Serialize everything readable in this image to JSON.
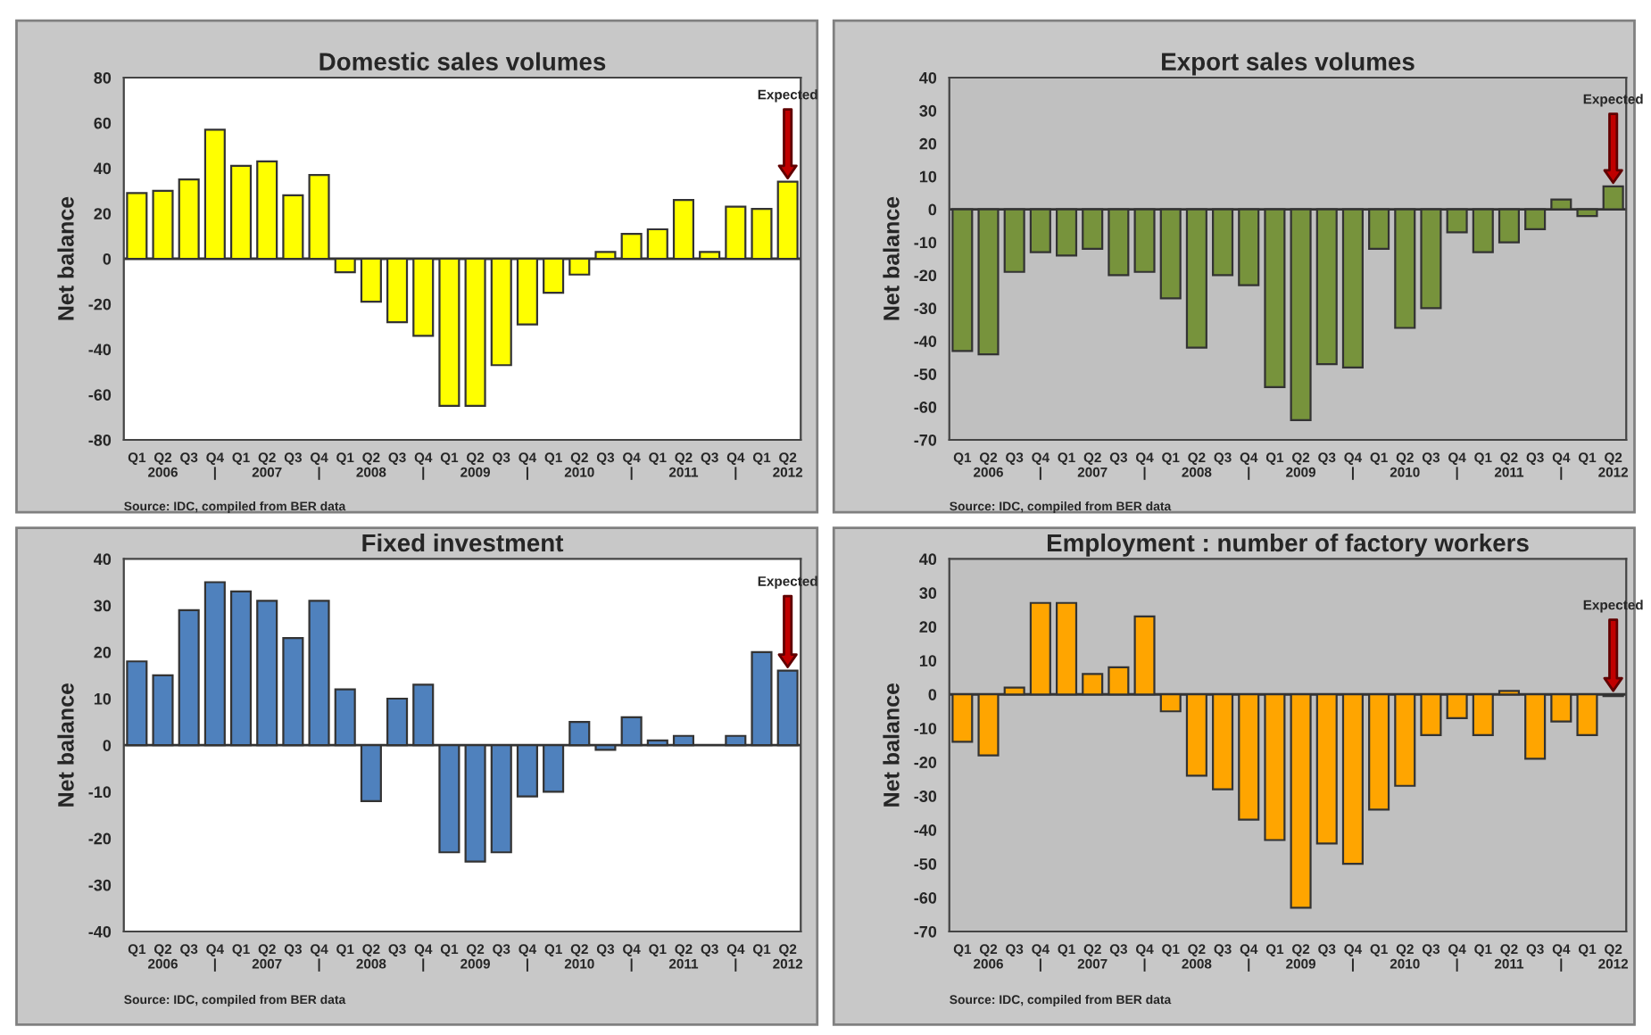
{
  "chart_data": [
    {
      "type": "bar",
      "title": "Domestic sales volumes",
      "ylabel": "Net balance",
      "categories": [
        "Q1",
        "Q2\n2006",
        "Q3",
        "Q4\n|",
        "Q1",
        "Q2\n2007",
        "Q3",
        "Q4\n|",
        "Q1",
        "Q2\n2008",
        "Q3",
        "Q4\n|",
        "Q1",
        "Q2\n2009",
        "Q3",
        "Q4\n|",
        "Q1",
        "Q2\n2010",
        "Q3",
        "Q4\n|",
        "Q1",
        "Q2\n2011",
        "Q3",
        "Q4\n|",
        "Q1",
        "Q2\n2012"
      ],
      "values": [
        29,
        30,
        35,
        57,
        41,
        43,
        28,
        37,
        -6,
        -19,
        -28,
        -34,
        -65,
        -65,
        -47,
        -29,
        -15,
        -7,
        3,
        11,
        13,
        26,
        3,
        23,
        22,
        34
      ],
      "color": "#ffff00",
      "ylim": [
        -80,
        80
      ],
      "yticks": [
        -80,
        -60,
        -40,
        -20,
        0,
        20,
        40,
        60,
        80
      ],
      "grid": false,
      "ref_lines": [
        {
          "axis": "y",
          "value": 0,
          "color": "#333333"
        }
      ],
      "annotations": [
        "Expected",
        "Source: IDC, compiled from BER data"
      ]
    },
    {
      "type": "bar",
      "title": "Export sales volumes",
      "ylabel": "Net balance",
      "categories": [
        "Q1",
        "Q2\n2006",
        "Q3",
        "Q4\n|",
        "Q1",
        "Q2\n2007",
        "Q3",
        "Q4\n|",
        "Q1",
        "Q2\n2008",
        "Q3",
        "Q4\n|",
        "Q1",
        "Q2\n2009",
        "Q3",
        "Q4\n|",
        "Q1",
        "Q2\n2010",
        "Q3",
        "Q4\n|",
        "Q1",
        "Q2\n2011",
        "Q3",
        "Q4\n|",
        "Q1",
        "Q2\n2012"
      ],
      "values": [
        -43,
        -44,
        -19,
        -13,
        -14,
        -12,
        -20,
        -19,
        -27,
        -42,
        -20,
        -23,
        -54,
        -64,
        -47,
        -48,
        -12,
        -36,
        -30,
        -7,
        -13,
        -10,
        -6,
        3,
        -2,
        7
      ],
      "color": "#77933c",
      "ylim": [
        -70,
        40
      ],
      "yticks": [
        -70,
        -60,
        -50,
        -40,
        -30,
        -20,
        -10,
        0,
        10,
        20,
        30,
        40
      ],
      "grid": false,
      "ref_lines": [
        {
          "axis": "y",
          "value": 0,
          "color": "#333333"
        }
      ],
      "annotations": [
        "Expected",
        "Source: IDC, compiled from BER data"
      ]
    },
    {
      "type": "bar",
      "title": "Fixed investment",
      "ylabel": "Net balance",
      "categories": [
        "Q1",
        "Q2\n2006",
        "Q3",
        "Q4\n|",
        "Q1",
        "Q2\n2007",
        "Q3",
        "Q4\n|",
        "Q1",
        "Q2\n2008",
        "Q3",
        "Q4\n|",
        "Q1",
        "Q2\n2009",
        "Q3",
        "Q4\n|",
        "Q1",
        "Q2\n2010",
        "Q3",
        "Q4\n|",
        "Q1",
        "Q2\n2011",
        "Q3",
        "Q4\n|",
        "Q1",
        "Q2\n2012"
      ],
      "values": [
        18,
        15,
        29,
        35,
        33,
        31,
        23,
        31,
        12,
        -12,
        10,
        13,
        -23,
        -25,
        -23,
        -11,
        -10,
        5,
        -1,
        6,
        1,
        2,
        null,
        2,
        20,
        16
      ],
      "color": "#4f81bd",
      "ylim": [
        -40,
        40
      ],
      "yticks": [
        -40,
        -30,
        -20,
        -10,
        0,
        10,
        20,
        30,
        40
      ],
      "grid": false,
      "ref_lines": [
        {
          "axis": "y",
          "value": 0,
          "color": "#333333"
        }
      ],
      "annotations": [
        "Expected",
        "Source: IDC, compiled from BER data"
      ]
    },
    {
      "type": "bar",
      "title": "Employment : number of factory workers",
      "ylabel": "Net balance",
      "categories": [
        "Q1",
        "Q2\n2006",
        "Q3",
        "Q4\n|",
        "Q1",
        "Q2\n2007",
        "Q3",
        "Q4\n|",
        "Q1",
        "Q2\n2008",
        "Q3",
        "Q4\n|",
        "Q1",
        "Q2\n2009",
        "Q3",
        "Q4\n|",
        "Q1",
        "Q2\n2010",
        "Q3",
        "Q4\n|",
        "Q1",
        "Q2\n2011",
        "Q3",
        "Q4\n|",
        "Q1",
        "Q2\n2012"
      ],
      "values": [
        -14,
        -18,
        2,
        27,
        27,
        6,
        8,
        23,
        -5,
        -24,
        -28,
        -37,
        -43,
        -63,
        -44,
        -50,
        -34,
        -27,
        -12,
        -7,
        -12,
        1,
        -19,
        -8,
        -12,
        -0.5
      ],
      "color": "#ffa500",
      "ylim": [
        -70,
        40
      ],
      "yticks": [
        -70,
        -60,
        -50,
        -40,
        -30,
        -20,
        -10,
        0,
        10,
        20,
        30,
        40
      ],
      "grid": false,
      "ref_lines": [
        {
          "axis": "y",
          "value": 0,
          "color": "#333333"
        }
      ],
      "annotations": [
        "Expected",
        "Source: IDC, compiled from BER data"
      ]
    }
  ]
}
